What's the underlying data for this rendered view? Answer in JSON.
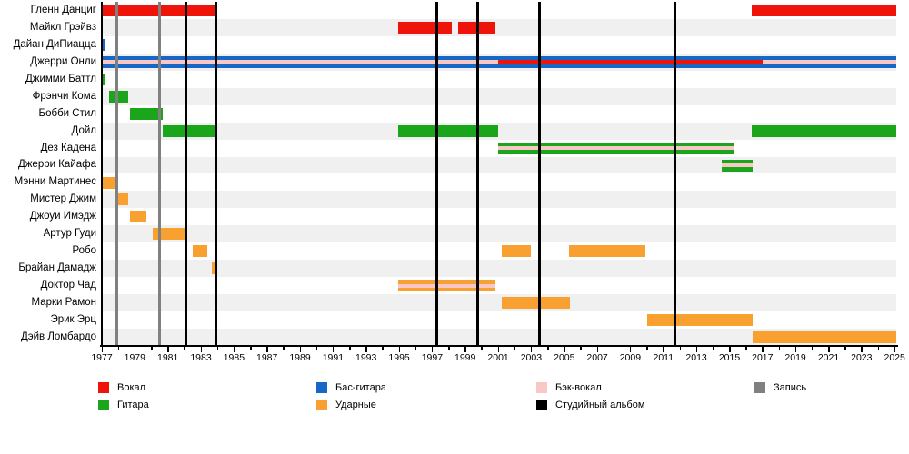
{
  "chart_data": {
    "type": "timeline",
    "description": "Band members timeline (Gantt-style), roles by color, with recording and studio-album event lines",
    "x_axis": {
      "min": 1977,
      "max": 2025,
      "tick_every": 1,
      "label_every": 2,
      "year_labels": [
        1977,
        1979,
        1981,
        1983,
        1985,
        1987,
        1989,
        1991,
        1993,
        1995,
        1997,
        1999,
        2001,
        2003,
        2005,
        2007,
        2009,
        2011,
        2013,
        2015,
        2017,
        2019,
        2021,
        2023,
        2025
      ]
    },
    "rows": [
      {
        "name": "Гленн Данциг",
        "segments": [
          {
            "role": "vocals",
            "start": 1977,
            "end": 1983.95
          },
          {
            "role": "vocals",
            "start": 2016.35,
            "end": 2025.1
          }
        ]
      },
      {
        "name": "Майкл Грэйвз",
        "segments": [
          {
            "role": "vocals",
            "start": 1994.95,
            "end": 1998.2
          },
          {
            "role": "vocals",
            "start": 1998.55,
            "end": 2000.85
          }
        ]
      },
      {
        "name": "Дайан ДиПиацца",
        "segments": [
          {
            "role": "bass",
            "start": 1977,
            "end": 1977.15
          }
        ]
      },
      {
        "name": "Джерри Онли",
        "segments": [
          {
            "role": "bass",
            "start": 1977,
            "end": 2001.0,
            "stripe": "backing"
          },
          {
            "role": "bass",
            "start": 2001.0,
            "end": 2017.0,
            "stripe": "vocals"
          },
          {
            "role": "bass",
            "start": 2017.0,
            "end": 2025.1,
            "stripe": "backing"
          }
        ]
      },
      {
        "name": "Джимми Баттл",
        "segments": [
          {
            "role": "guitar",
            "start": 1977,
            "end": 1977.15
          }
        ]
      },
      {
        "name": "Фрэнчи Кома",
        "segments": [
          {
            "role": "guitar",
            "start": 1977.45,
            "end": 1978.6
          }
        ]
      },
      {
        "name": "Бобби Стил",
        "segments": [
          {
            "role": "guitar",
            "start": 1978.7,
            "end": 1980.7
          }
        ]
      },
      {
        "name": "Дойл",
        "segments": [
          {
            "role": "guitar",
            "start": 1980.7,
            "end": 1983.95
          },
          {
            "role": "guitar",
            "start": 1994.95,
            "end": 2001.0
          },
          {
            "role": "guitar",
            "start": 2016.35,
            "end": 2025.1
          }
        ]
      },
      {
        "name": "Дез Кадена",
        "segments": [
          {
            "role": "guitar",
            "start": 2001.0,
            "end": 2015.25,
            "stripe": "backing"
          }
        ]
      },
      {
        "name": "Джерри Кайафа",
        "segments": [
          {
            "role": "guitar",
            "start": 2014.55,
            "end": 2016.4,
            "stripe": "backing"
          }
        ]
      },
      {
        "name": "Мэнни Мартинес",
        "segments": [
          {
            "role": "drums",
            "start": 1977,
            "end": 1977.85
          }
        ]
      },
      {
        "name": "Мистер Джим",
        "segments": [
          {
            "role": "drums",
            "start": 1977.9,
            "end": 1978.6
          }
        ]
      },
      {
        "name": "Джоуи Имэдж",
        "segments": [
          {
            "role": "drums",
            "start": 1978.7,
            "end": 1979.7
          }
        ]
      },
      {
        "name": "Артур Гуди",
        "segments": [
          {
            "role": "drums",
            "start": 1980.1,
            "end": 1982.1
          }
        ]
      },
      {
        "name": "Робо",
        "segments": [
          {
            "role": "drums",
            "start": 1982.5,
            "end": 1983.4
          },
          {
            "role": "drums",
            "start": 2001.2,
            "end": 2003.0
          },
          {
            "role": "drums",
            "start": 2005.3,
            "end": 2009.9
          }
        ]
      },
      {
        "name": "Брайан Дамадж",
        "segments": [
          {
            "role": "drums",
            "start": 1983.65,
            "end": 1983.85
          }
        ]
      },
      {
        "name": "Доктор Чад",
        "segments": [
          {
            "role": "drums",
            "start": 1994.95,
            "end": 2000.85,
            "stripe": "backing"
          }
        ]
      },
      {
        "name": "Марки Рамон",
        "segments": [
          {
            "role": "drums",
            "start": 2001.2,
            "end": 2005.35
          }
        ]
      },
      {
        "name": "Эрик Эрц",
        "segments": [
          {
            "role": "drums",
            "start": 2010.0,
            "end": 2016.4
          }
        ]
      },
      {
        "name": "Дэйв Ломбардо",
        "segments": [
          {
            "role": "drums",
            "start": 2016.4,
            "end": 2025.1
          }
        ]
      }
    ],
    "events": {
      "recording_years": [
        1977.92,
        1980.5
      ],
      "album_years": [
        1982.1,
        1983.88,
        1997.3,
        1999.78,
        2003.5,
        2011.72
      ]
    },
    "legend_columns": [
      [
        {
          "label": "Вокал",
          "color_key": "vocals"
        },
        {
          "label": "Гитара",
          "color_key": "guitar"
        }
      ],
      [
        {
          "label": "Бас-гитара",
          "color_key": "bass"
        },
        {
          "label": "Ударные",
          "color_key": "drums"
        }
      ],
      [
        {
          "label": "Бэк-вокал",
          "color_key": "backing"
        },
        {
          "label": "Студийный альбом",
          "color_key": "album"
        }
      ],
      [
        {
          "label": "Запись",
          "color_key": "recording"
        }
      ]
    ]
  },
  "colors": {
    "vocals": "#ee1409",
    "guitar": "#1ba51b",
    "bass": "#1768c6",
    "drums": "#f8a030",
    "backing": "#f9c8c6",
    "album": "#000000",
    "recording": "#808080",
    "row_stripe": "#f0f0f0"
  }
}
